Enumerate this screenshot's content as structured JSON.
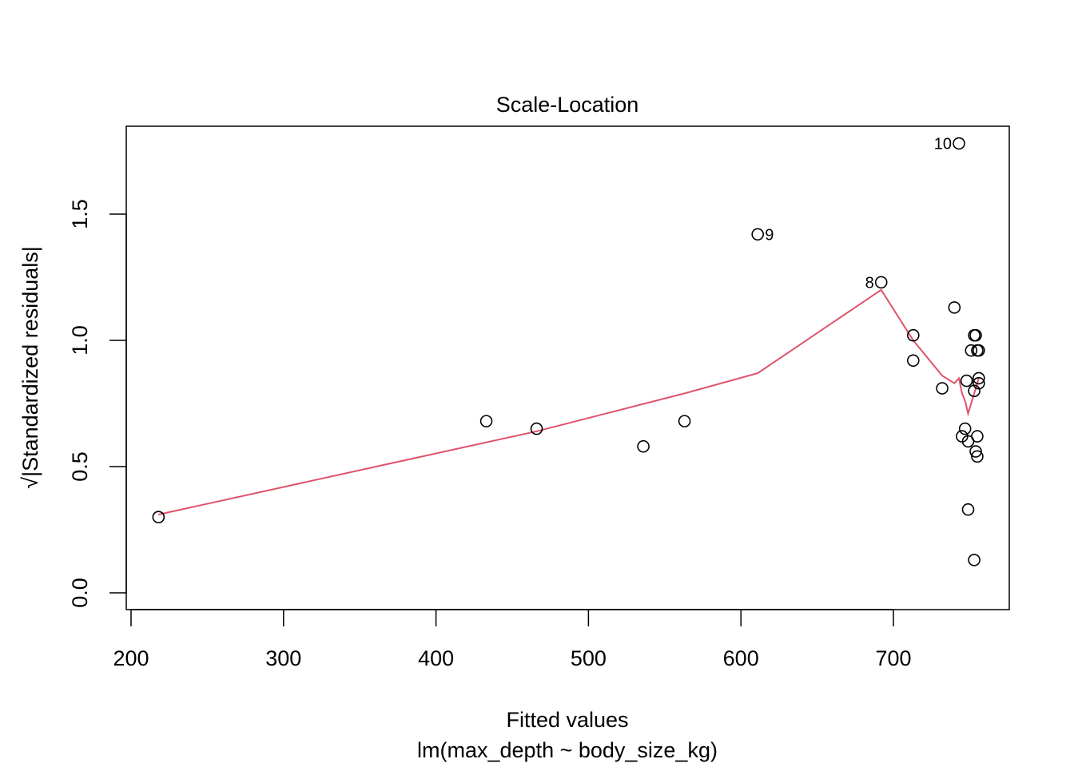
{
  "chart_data": {
    "type": "scatter",
    "title": "Scale-Location",
    "xlabel": "Fitted values",
    "xlabel_sub": "lm(max_depth ~ body_size_kg)",
    "ylabel": "√|Standardized residuals|",
    "xlim": [
      200,
      760
    ],
    "ylim": [
      0.0,
      1.75
    ],
    "xticks": [
      200,
      300,
      400,
      500,
      600,
      700
    ],
    "yticks": [
      0.0,
      0.5,
      1.0,
      1.5
    ],
    "xtick_labels": [
      "200",
      "300",
      "400",
      "500",
      "600",
      "700"
    ],
    "ytick_labels": [
      "0.0",
      "0.5",
      "1.0",
      "1.5"
    ],
    "grid": false,
    "points": [
      {
        "x": 218,
        "y": 0.3
      },
      {
        "x": 433,
        "y": 0.68
      },
      {
        "x": 466,
        "y": 0.65
      },
      {
        "x": 536,
        "y": 0.58
      },
      {
        "x": 563,
        "y": 0.68
      },
      {
        "x": 611,
        "y": 1.42,
        "label": "9"
      },
      {
        "x": 692,
        "y": 1.23,
        "label": "8"
      },
      {
        "x": 713,
        "y": 1.02
      },
      {
        "x": 713,
        "y": 0.92
      },
      {
        "x": 732,
        "y": 0.81
      },
      {
        "x": 740,
        "y": 1.13
      },
      {
        "x": 743,
        "y": 1.78,
        "label": "10"
      },
      {
        "x": 745,
        "y": 0.62
      },
      {
        "x": 747,
        "y": 0.65
      },
      {
        "x": 748,
        "y": 0.84
      },
      {
        "x": 749,
        "y": 0.6
      },
      {
        "x": 749,
        "y": 0.33
      },
      {
        "x": 751,
        "y": 0.96
      },
      {
        "x": 753,
        "y": 1.02
      },
      {
        "x": 753,
        "y": 0.8
      },
      {
        "x": 753,
        "y": 0.13
      },
      {
        "x": 754,
        "y": 1.02
      },
      {
        "x": 754,
        "y": 0.56
      },
      {
        "x": 755,
        "y": 0.96
      },
      {
        "x": 755,
        "y": 0.54
      },
      {
        "x": 755,
        "y": 0.62
      },
      {
        "x": 756,
        "y": 0.96
      },
      {
        "x": 756,
        "y": 0.85
      },
      {
        "x": 756,
        "y": 0.83
      }
    ],
    "smooth_line": {
      "color": "#DF536B",
      "x": [
        218,
        466,
        563,
        611,
        692,
        713,
        732,
        740,
        743,
        745,
        747,
        749,
        753,
        756
      ],
      "y": [
        0.31,
        0.64,
        0.79,
        0.87,
        1.2,
        1.0,
        0.86,
        0.83,
        0.85,
        0.79,
        0.76,
        0.71,
        0.79,
        0.85
      ]
    },
    "point_color": "#000000"
  }
}
